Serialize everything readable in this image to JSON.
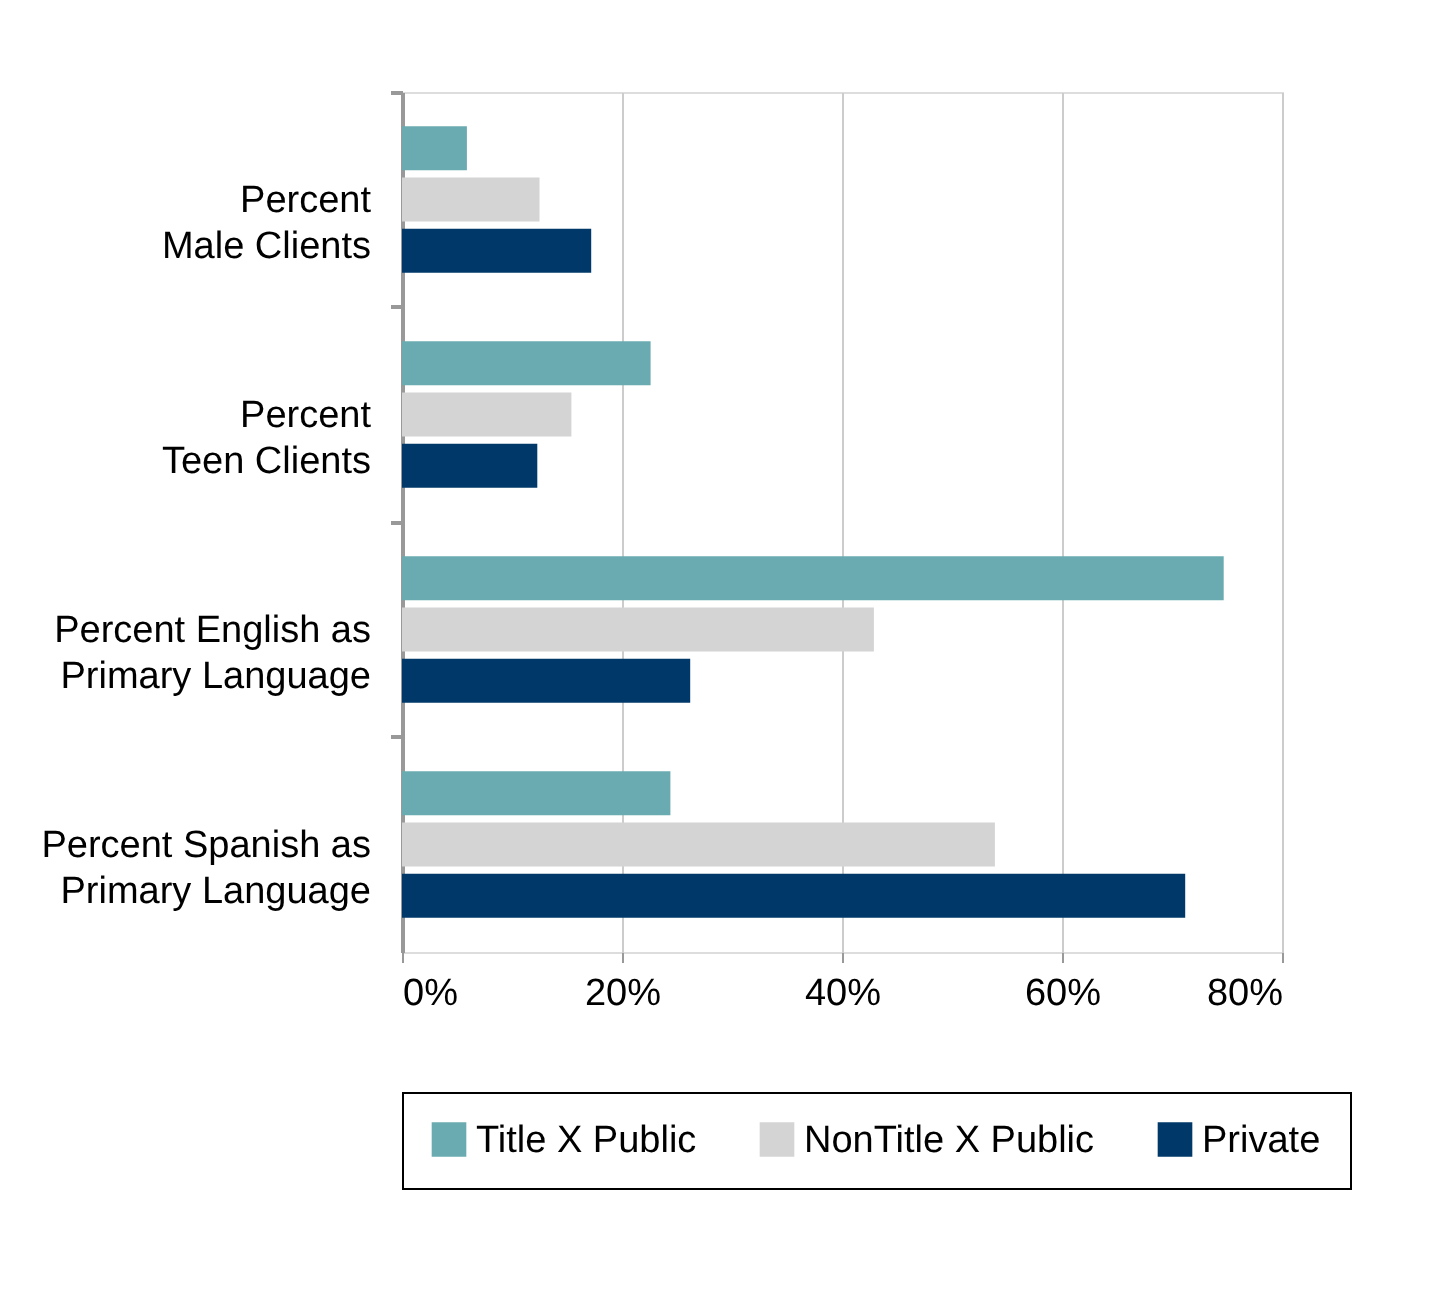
{
  "chart_data": {
    "type": "bar",
    "orientation": "horizontal",
    "categories": [
      "Percent\nMale Clients",
      "Percent\nTeen Clients",
      "Percent English as\nPrimary Language",
      "Percent Spanish as\nPrimary Language"
    ],
    "series": [
      {
        "name": "Title X Public",
        "color": "#6aabb1",
        "values": [
          5.9,
          22.6,
          74.7,
          24.4
        ]
      },
      {
        "name": "NonTitle X Public",
        "color": "#d4d4d4",
        "values": [
          12.5,
          15.4,
          42.9,
          53.9
        ]
      },
      {
        "name": "Private",
        "color": "#003869",
        "values": [
          17.2,
          12.3,
          26.2,
          71.2
        ]
      }
    ],
    "xlim": [
      0,
      80
    ],
    "xticks": [
      {
        "value": 0,
        "label": "0%"
      },
      {
        "value": 20,
        "label": "20%"
      },
      {
        "value": 40,
        "label": "40%"
      },
      {
        "value": 60,
        "label": "60%"
      },
      {
        "value": 80,
        "label": "80%"
      }
    ],
    "grid": "x",
    "legend": "bottom"
  }
}
